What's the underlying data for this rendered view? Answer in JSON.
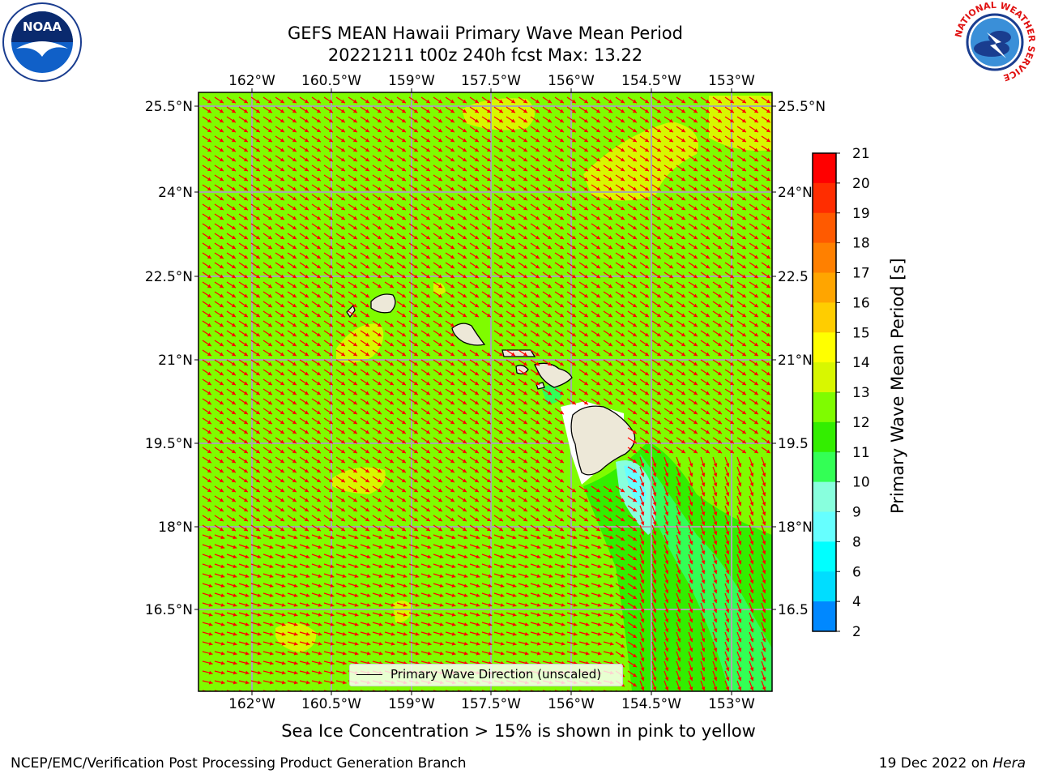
{
  "header": {
    "title_line1": "GEFS MEAN Hawaii Primary Wave Mean Period",
    "title_line2": "20221211 t00z 240h fcst   Max: 13.22"
  },
  "logos": {
    "noaa_text": "NOAA",
    "nws_ring_text": "NATIONAL WEATHER SERVICE"
  },
  "map": {
    "lon_labels": [
      "162°W",
      "160.5°W",
      "159°W",
      "157.5°W",
      "156°W",
      "154.5°W",
      "153°W"
    ],
    "lat_labels": [
      "25.5°N",
      "24°N",
      "22.5°N",
      "21°N",
      "19.5°N",
      "18°N",
      "16.5°N"
    ],
    "lat_labels_right": [
      "25.5°N",
      "24°N",
      "22.5",
      "21°N",
      "19.5",
      "18°N",
      "16.5"
    ],
    "legend_label": "Primary Wave Direction (unscaled)",
    "arrow_color": "#ff0000",
    "base_color": "#7ffc00",
    "land_color": "#ede8d8"
  },
  "colorbar": {
    "label": "Primary Wave Mean Period [s]",
    "ticks": [
      "21",
      "20",
      "19",
      "18",
      "17",
      "16",
      "15",
      "14",
      "13",
      "12",
      "11",
      "10",
      "9",
      "8",
      "6",
      "4",
      "2"
    ],
    "colors": [
      "#ff0000",
      "#ff2d00",
      "#ff5a00",
      "#ff8000",
      "#ffa500",
      "#ffcd00",
      "#ffff00",
      "#d8f700",
      "#7ffc00",
      "#33ee00",
      "#33ff55",
      "#88ffdd",
      "#66ffff",
      "#00ffff",
      "#00ddff",
      "#0088ff",
      "#0000ff"
    ]
  },
  "subtitle": "Sea Ice Concentration > 15% is shown in pink to yellow",
  "footer": {
    "left": "NCEP/EMC/Verification Post Processing Product Generation Branch",
    "right_prefix": "19 Dec 2022 on ",
    "right_host": "Hera"
  }
}
